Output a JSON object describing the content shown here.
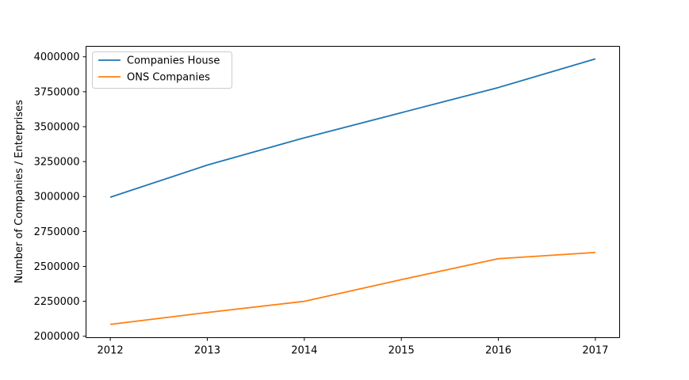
{
  "chart_data": {
    "type": "line",
    "title": "",
    "xlabel": "",
    "ylabel": "Number of Companies / Enterprises",
    "x": [
      2012,
      2013,
      2014,
      2015,
      2016,
      2017
    ],
    "x_tick_labels": [
      "2012",
      "2013",
      "2014",
      "2015",
      "2016",
      "2017"
    ],
    "y_ticks": [
      2000000,
      2250000,
      2500000,
      2750000,
      3000000,
      3250000,
      3500000,
      3750000,
      4000000
    ],
    "y_tick_labels": [
      "2000000",
      "2250000",
      "2500000",
      "2750000",
      "3000000",
      "3250000",
      "3500000",
      "3750000",
      "4000000"
    ],
    "xlim": [
      2011.75,
      2017.25
    ],
    "ylim": [
      1990000,
      4075000
    ],
    "grid": false,
    "legend_position": "top-left",
    "series": [
      {
        "name": "Companies House",
        "color": "#1f77b4",
        "values": [
          2995000,
          3225000,
          3420000,
          3600000,
          3780000,
          3985000
        ]
      },
      {
        "name": "ONS Companies",
        "color": "#ff7f0e",
        "values": [
          2085000,
          2170000,
          2250000,
          2405000,
          2555000,
          2600000
        ]
      }
    ]
  }
}
